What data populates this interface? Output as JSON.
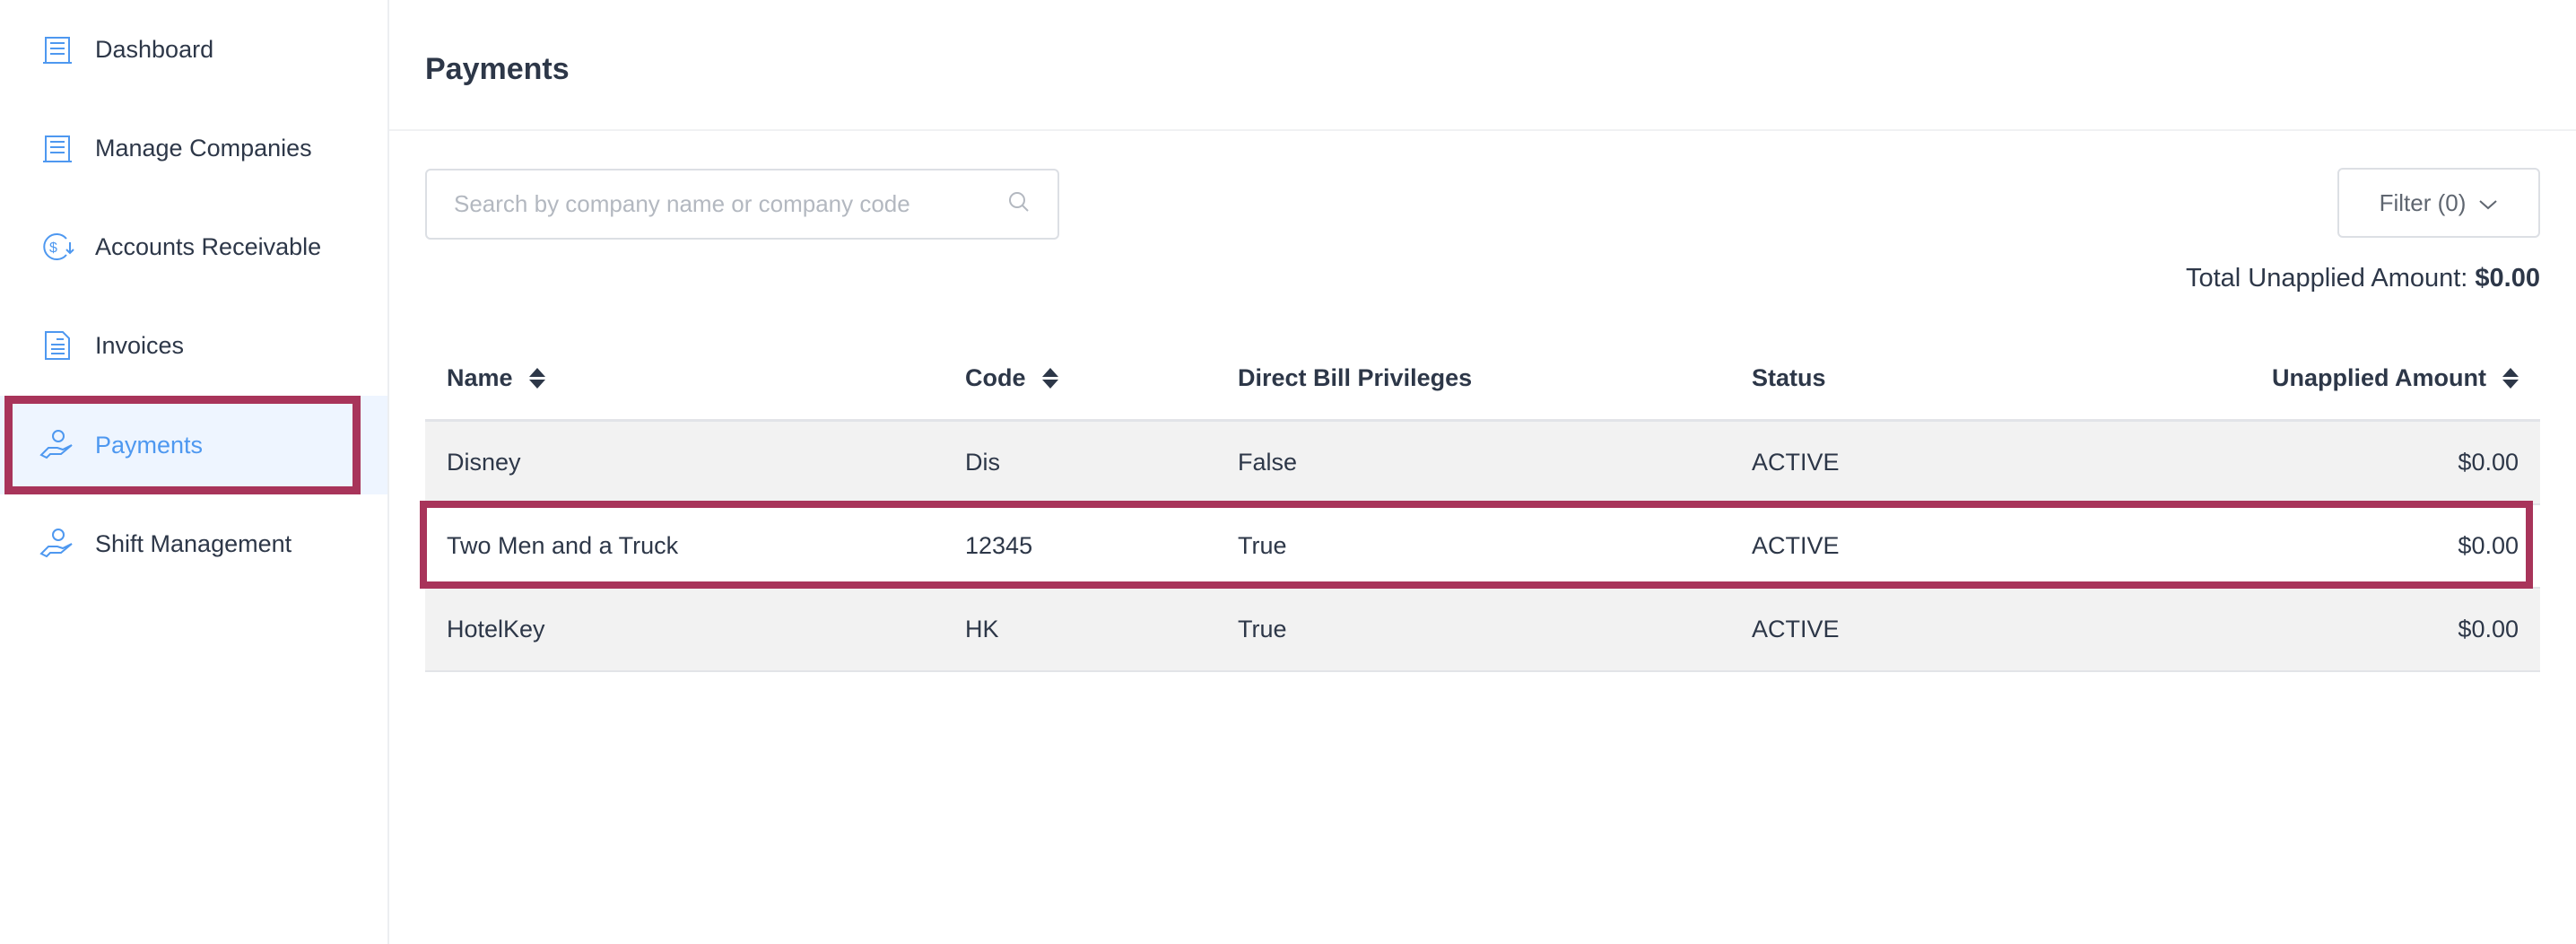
{
  "sidebar": {
    "items": [
      {
        "label": "Dashboard",
        "icon": "building-icon"
      },
      {
        "label": "Manage Companies",
        "icon": "building-icon"
      },
      {
        "label": "Accounts Receivable",
        "icon": "dollar-cycle-icon"
      },
      {
        "label": "Invoices",
        "icon": "invoice-icon"
      },
      {
        "label": "Payments",
        "icon": "hand-coin-icon",
        "active": true
      },
      {
        "label": "Shift Management",
        "icon": "hand-coin-icon"
      }
    ]
  },
  "header": {
    "title": "Payments"
  },
  "search": {
    "placeholder": "Search by company name or company code",
    "value": ""
  },
  "filter": {
    "label": "Filter (0)"
  },
  "total": {
    "label": "Total Unapplied Amount:",
    "value": "$0.00"
  },
  "table": {
    "columns": [
      "Name",
      "Code",
      "Direct Bill Privileges",
      "Status",
      "Unapplied Amount"
    ],
    "rows": [
      {
        "name": "Disney",
        "code": "Dis",
        "direct_bill": "False",
        "status": "ACTIVE",
        "amount": "$0.00"
      },
      {
        "name": "Two Men and a Truck",
        "code": "12345",
        "direct_bill": "True",
        "status": "ACTIVE",
        "amount": "$0.00"
      },
      {
        "name": "HotelKey",
        "code": "HK",
        "direct_bill": "True",
        "status": "ACTIVE",
        "amount": "$0.00"
      }
    ]
  },
  "colors": {
    "accent": "#4e98f0",
    "highlight": "#a8345a",
    "active_bg": "#eef5ff"
  }
}
